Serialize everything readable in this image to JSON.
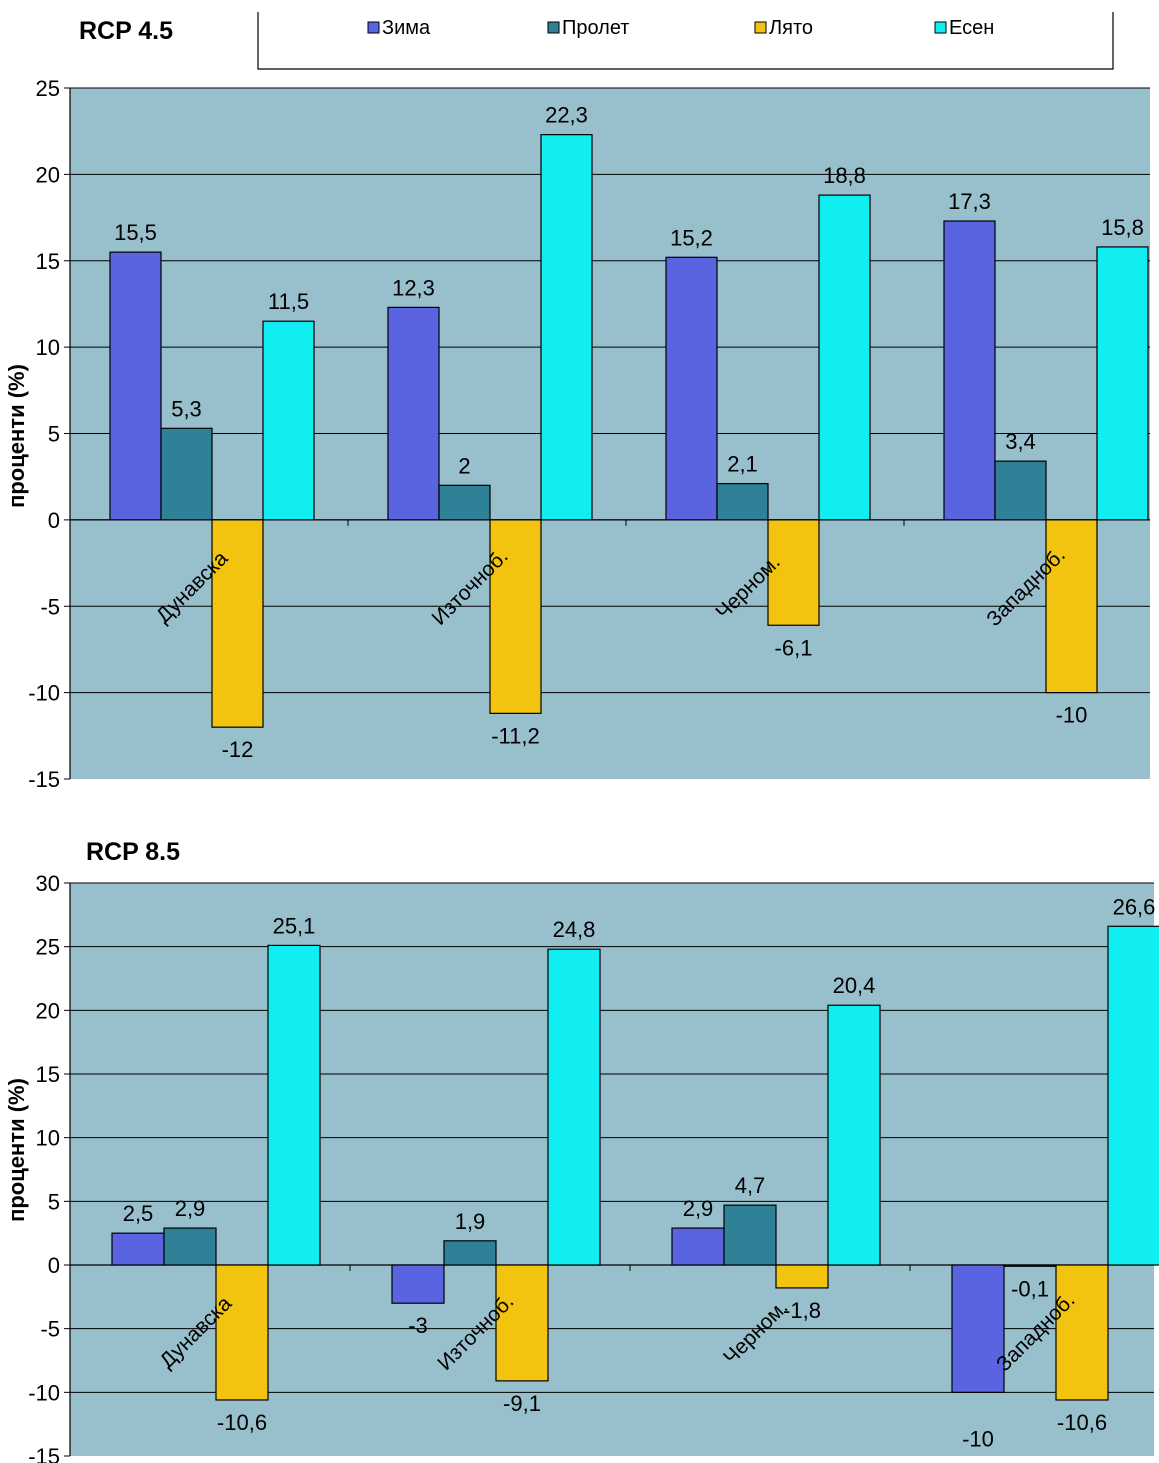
{
  "legend": {
    "items": [
      {
        "name": "Зима",
        "color": "#5a63e0"
      },
      {
        "name": "Пролет",
        "color": "#2e8196"
      },
      {
        "name": "Лято",
        "color": "#f2c40f"
      },
      {
        "name": "Есен",
        "color": "#11eef2"
      }
    ]
  },
  "colors": {
    "plot_background": "#98bfcc",
    "frame": "#000000"
  },
  "chart_data": [
    {
      "type": "bar",
      "title": "RCP 4.5",
      "ylabel": "проценти (%)",
      "ylim": [
        -15,
        25
      ],
      "yticks": [
        -15,
        -10,
        -5,
        0,
        5,
        10,
        15,
        20,
        25
      ],
      "categories": [
        "Дунавска",
        "Източноб.",
        "Черном.",
        "Западноб."
      ],
      "series": [
        {
          "name": "Зима",
          "values": [
            15.5,
            12.3,
            15.2,
            17.3
          ],
          "labels": [
            "15,5",
            "12,3",
            "15,2",
            "17,3"
          ]
        },
        {
          "name": "Пролет",
          "values": [
            5.3,
            2,
            2.1,
            3.4
          ],
          "labels": [
            "5,3",
            "2",
            "2,1",
            "3,4"
          ]
        },
        {
          "name": "Лято",
          "values": [
            -12,
            -11.2,
            -6.1,
            -10
          ],
          "labels": [
            "-12",
            "-11,2",
            "-6,1",
            "-10"
          ]
        },
        {
          "name": "Есен",
          "values": [
            11.5,
            22.3,
            18.8,
            15.8
          ],
          "labels": [
            "11,5",
            "22,3",
            "18,8",
            "15,8"
          ]
        }
      ],
      "legend_position": "top",
      "grid": true
    },
    {
      "type": "bar",
      "title": "RCP 8.5",
      "ylabel": "проценти (%)",
      "ylim": [
        -15,
        30
      ],
      "yticks": [
        -15,
        -10,
        -5,
        0,
        5,
        10,
        15,
        20,
        25,
        30
      ],
      "categories": [
        "Дунавска",
        "Източноб.",
        "Черном.",
        "Западноб."
      ],
      "series": [
        {
          "name": "Зима",
          "values": [
            2.5,
            -3,
            2.9,
            -10
          ],
          "labels": [
            "2,5",
            "-3",
            "2,9",
            "-10"
          ]
        },
        {
          "name": "Пролет",
          "values": [
            2.9,
            1.9,
            4.7,
            -0.1
          ],
          "labels": [
            "2,9",
            "1,9",
            "4,7",
            "-0,1"
          ]
        },
        {
          "name": "Лято",
          "values": [
            -10.6,
            -9.1,
            -1.8,
            -10.6
          ],
          "labels": [
            "-10,6",
            "-9,1",
            "-1,8",
            "-10,6"
          ]
        },
        {
          "name": "Есен",
          "values": [
            25.1,
            24.8,
            20.4,
            26.6
          ],
          "labels": [
            "25,1",
            "24,8",
            "20,4",
            "26,6"
          ]
        }
      ],
      "grid": true
    }
  ]
}
